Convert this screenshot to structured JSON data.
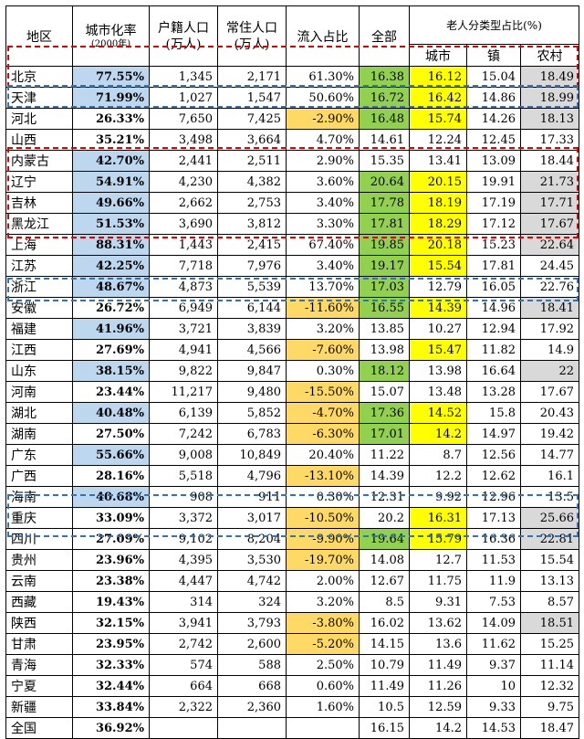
{
  "header": {
    "region": "地区",
    "urbanization": "城市化率",
    "urbanization_note": "(2000年)",
    "hukou_pop": "户籍人口",
    "resident_pop": "常住人口",
    "unit": "(万人)",
    "inflow": "流入占比",
    "total": "全部",
    "elderly_group": "老人分类型占比(%)",
    "city": "城市",
    "town": "镇",
    "rural": "农村"
  },
  "rows": [
    {
      "region": "北京",
      "urb": "77.55%",
      "hukou": "1,345",
      "resident": "2,171",
      "inflow": "61.30%",
      "total": "16.38",
      "city": "16.12",
      "town": "15.04",
      "rural": "18.49",
      "urb_hl": true,
      "inflow_hl": false,
      "total_hl": true,
      "city_hl": true,
      "rural_hl": true
    },
    {
      "region": "天津",
      "urb": "71.99%",
      "hukou": "1,027",
      "resident": "1,547",
      "inflow": "50.60%",
      "total": "16.72",
      "city": "16.42",
      "town": "14.86",
      "rural": "18.99",
      "urb_hl": true,
      "inflow_hl": false,
      "total_hl": true,
      "city_hl": true,
      "rural_hl": true
    },
    {
      "region": "河北",
      "urb": "26.33%",
      "hukou": "7,650",
      "resident": "7,425",
      "inflow": "-2.90%",
      "total": "16.48",
      "city": "15.74",
      "town": "14.26",
      "rural": "18.13",
      "urb_hl": false,
      "inflow_hl": true,
      "total_hl": true,
      "city_hl": true,
      "rural_hl": true
    },
    {
      "region": "山西",
      "urb": "35.21%",
      "hukou": "3,498",
      "resident": "3,664",
      "inflow": "4.70%",
      "total": "14.61",
      "city": "12.24",
      "town": "12.45",
      "rural": "17.33",
      "urb_hl": false,
      "inflow_hl": false,
      "total_hl": false,
      "city_hl": false,
      "rural_hl": false
    },
    {
      "region": "内蒙古",
      "urb": "42.70%",
      "hukou": "2,441",
      "resident": "2,511",
      "inflow": "2.90%",
      "total": "15.35",
      "city": "13.41",
      "town": "13.09",
      "rural": "18.44",
      "urb_hl": true,
      "inflow_hl": false,
      "total_hl": false,
      "city_hl": false,
      "rural_hl": false
    },
    {
      "region": "辽宁",
      "urb": "54.91%",
      "hukou": "4,230",
      "resident": "4,382",
      "inflow": "3.60%",
      "total": "20.64",
      "city": "20.15",
      "town": "19.91",
      "rural": "21.73",
      "urb_hl": true,
      "inflow_hl": false,
      "total_hl": true,
      "city_hl": true,
      "rural_hl": true
    },
    {
      "region": "吉林",
      "urb": "49.66%",
      "hukou": "2,662",
      "resident": "2,753",
      "inflow": "3.40%",
      "total": "17.78",
      "city": "18.19",
      "town": "17.19",
      "rural": "17.71",
      "urb_hl": true,
      "inflow_hl": false,
      "total_hl": true,
      "city_hl": true,
      "rural_hl": true
    },
    {
      "region": "黑龙江",
      "urb": "51.53%",
      "hukou": "3,690",
      "resident": "3,812",
      "inflow": "3.30%",
      "total": "17.81",
      "city": "18.29",
      "town": "17.12",
      "rural": "17.67",
      "urb_hl": true,
      "inflow_hl": false,
      "total_hl": true,
      "city_hl": true,
      "rural_hl": true
    },
    {
      "region": "上海",
      "urb": "88.31%",
      "hukou": "1,443",
      "resident": "2,415",
      "inflow": "67.40%",
      "total": "19.85",
      "city": "20.18",
      "town": "15.23",
      "rural": "22.64",
      "urb_hl": true,
      "inflow_hl": false,
      "total_hl": true,
      "city_hl": true,
      "rural_hl": true
    },
    {
      "region": "江苏",
      "urb": "42.25%",
      "hukou": "7,718",
      "resident": "7,976",
      "inflow": "3.40%",
      "total": "19.17",
      "city": "15.54",
      "town": "17.81",
      "rural": "24.45",
      "urb_hl": true,
      "inflow_hl": false,
      "total_hl": true,
      "city_hl": true,
      "rural_hl": false
    },
    {
      "region": "浙江",
      "urb": "48.67%",
      "hukou": "4,873",
      "resident": "5,539",
      "inflow": "13.70%",
      "total": "17.03",
      "city": "12.79",
      "town": "16.05",
      "rural": "22.76",
      "urb_hl": true,
      "inflow_hl": false,
      "total_hl": true,
      "city_hl": false,
      "rural_hl": false
    },
    {
      "region": "安徽",
      "urb": "26.72%",
      "hukou": "6,949",
      "resident": "6,144",
      "inflow": "-11.60%",
      "total": "16.55",
      "city": "14.39",
      "town": "14.96",
      "rural": "18.41",
      "urb_hl": false,
      "inflow_hl": true,
      "total_hl": true,
      "city_hl": true,
      "rural_hl": true
    },
    {
      "region": "福建",
      "urb": "41.96%",
      "hukou": "3,721",
      "resident": "3,839",
      "inflow": "3.20%",
      "total": "13.85",
      "city": "10.27",
      "town": "12.94",
      "rural": "17.92",
      "urb_hl": true,
      "inflow_hl": false,
      "total_hl": false,
      "city_hl": false,
      "rural_hl": false
    },
    {
      "region": "江西",
      "urb": "27.69%",
      "hukou": "4,941",
      "resident": "4,566",
      "inflow": "-7.60%",
      "total": "13.98",
      "city": "15.47",
      "town": "11.82",
      "rural": "14.9",
      "urb_hl": false,
      "inflow_hl": true,
      "total_hl": false,
      "city_hl": true,
      "rural_hl": false
    },
    {
      "region": "山东",
      "urb": "38.15%",
      "hukou": "9,822",
      "resident": "9,847",
      "inflow": "0.30%",
      "total": "18.12",
      "city": "13.98",
      "town": "16.64",
      "rural": "22",
      "urb_hl": true,
      "inflow_hl": false,
      "total_hl": true,
      "city_hl": false,
      "rural_hl": true
    },
    {
      "region": "河南",
      "urb": "23.44%",
      "hukou": "11,217",
      "resident": "9,480",
      "inflow": "-15.50%",
      "total": "15.07",
      "city": "13.48",
      "town": "13.28",
      "rural": "17.67",
      "urb_hl": false,
      "inflow_hl": true,
      "total_hl": false,
      "city_hl": false,
      "rural_hl": false
    },
    {
      "region": "湖北",
      "urb": "40.48%",
      "hukou": "6,139",
      "resident": "5,852",
      "inflow": "-4.70%",
      "total": "17.36",
      "city": "14.52",
      "town": "15.8",
      "rural": "20.43",
      "urb_hl": true,
      "inflow_hl": true,
      "total_hl": true,
      "city_hl": true,
      "rural_hl": false
    },
    {
      "region": "湖南",
      "urb": "27.50%",
      "hukou": "7,242",
      "resident": "6,783",
      "inflow": "-6.30%",
      "total": "17.01",
      "city": "14.2",
      "town": "14.97",
      "rural": "19.42",
      "urb_hl": false,
      "inflow_hl": true,
      "total_hl": true,
      "city_hl": true,
      "rural_hl": false
    },
    {
      "region": "广东",
      "urb": "55.66%",
      "hukou": "9,008",
      "resident": "10,849",
      "inflow": "20.40%",
      "total": "11.22",
      "city": "8.7",
      "town": "12.56",
      "rural": "14.77",
      "urb_hl": true,
      "inflow_hl": false,
      "total_hl": false,
      "city_hl": false,
      "rural_hl": false
    },
    {
      "region": "广西",
      "urb": "28.16%",
      "hukou": "5,518",
      "resident": "4,796",
      "inflow": "-13.10%",
      "total": "14.39",
      "city": "12.2",
      "town": "12.62",
      "rural": "16.1",
      "urb_hl": false,
      "inflow_hl": true,
      "total_hl": false,
      "city_hl": false,
      "rural_hl": false
    },
    {
      "region": "海南",
      "urb": "40.68%",
      "hukou": "908",
      "resident": "911",
      "inflow": "0.30%",
      "total": "12.31",
      "city": "9.92",
      "town": "12.96",
      "rural": "13.5",
      "urb_hl": true,
      "inflow_hl": false,
      "total_hl": false,
      "city_hl": false,
      "rural_hl": false
    },
    {
      "region": "重庆",
      "urb": "33.09%",
      "hukou": "3,372",
      "resident": "3,017",
      "inflow": "-10.50%",
      "total": "20.2",
      "city": "16.31",
      "town": "17.13",
      "rural": "25.66",
      "urb_hl": false,
      "inflow_hl": true,
      "total_hl": false,
      "city_hl": true,
      "rural_hl": true
    },
    {
      "region": "四川",
      "urb": "27.09%",
      "hukou": "9,102",
      "resident": "8,204",
      "inflow": "-9.90%",
      "total": "19.64",
      "city": "15.79",
      "town": "16.36",
      "rural": "22.81",
      "urb_hl": false,
      "inflow_hl": true,
      "total_hl": true,
      "city_hl": true,
      "rural_hl": true
    },
    {
      "region": "贵州",
      "urb": "23.96%",
      "hukou": "4,395",
      "resident": "3,530",
      "inflow": "-19.70%",
      "total": "14.08",
      "city": "12.7",
      "town": "11.53",
      "rural": "15.54",
      "urb_hl": false,
      "inflow_hl": true,
      "total_hl": false,
      "city_hl": false,
      "rural_hl": false
    },
    {
      "region": "云南",
      "urb": "23.38%",
      "hukou": "4,447",
      "resident": "4,742",
      "inflow": "2.00%",
      "total": "12.67",
      "city": "11.75",
      "town": "11.9",
      "rural": "13.13",
      "urb_hl": false,
      "inflow_hl": false,
      "total_hl": false,
      "city_hl": false,
      "rural_hl": false
    },
    {
      "region": "西藏",
      "urb": "19.43%",
      "hukou": "314",
      "resident": "324",
      "inflow": "3.20%",
      "total": "8.5",
      "city": "9.31",
      "town": "7.53",
      "rural": "8.57",
      "urb_hl": false,
      "inflow_hl": false,
      "total_hl": false,
      "city_hl": false,
      "rural_hl": false
    },
    {
      "region": "陕西",
      "urb": "32.15%",
      "hukou": "3,941",
      "resident": "3,793",
      "inflow": "-3.80%",
      "total": "16.02",
      "city": "13.62",
      "town": "14.09",
      "rural": "18.51",
      "urb_hl": false,
      "inflow_hl": true,
      "total_hl": false,
      "city_hl": false,
      "rural_hl": true
    },
    {
      "region": "甘肃",
      "urb": "23.95%",
      "hukou": "2,742",
      "resident": "2,600",
      "inflow": "-5.20%",
      "total": "14.15",
      "city": "13.6",
      "town": "11.62",
      "rural": "15.25",
      "urb_hl": false,
      "inflow_hl": true,
      "total_hl": false,
      "city_hl": false,
      "rural_hl": false
    },
    {
      "region": "青海",
      "urb": "32.33%",
      "hukou": "574",
      "resident": "588",
      "inflow": "2.50%",
      "total": "10.79",
      "city": "11.49",
      "town": "9.37",
      "rural": "11.14",
      "urb_hl": false,
      "inflow_hl": false,
      "total_hl": false,
      "city_hl": false,
      "rural_hl": false
    },
    {
      "region": "宁夏",
      "urb": "32.44%",
      "hukou": "664",
      "resident": "668",
      "inflow": "0.60%",
      "total": "11.49",
      "city": "11.26",
      "town": "10",
      "rural": "12.32",
      "urb_hl": false,
      "inflow_hl": false,
      "total_hl": false,
      "city_hl": false,
      "rural_hl": false
    },
    {
      "region": "新疆",
      "urb": "33.84%",
      "hukou": "2,322",
      "resident": "2,360",
      "inflow": "1.60%",
      "total": "10.5",
      "city": "12.59",
      "town": "9.33",
      "rural": "9.75",
      "urb_hl": false,
      "inflow_hl": false,
      "total_hl": false,
      "city_hl": false,
      "rural_hl": false
    },
    {
      "region": "全国",
      "urb": "36.92%",
      "hukou": "",
      "resident": "",
      "inflow": "",
      "total": "16.15",
      "city": "14.2",
      "town": "14.53",
      "rural": "18.47",
      "urb_hl": false,
      "inflow_hl": false,
      "total_hl": false,
      "city_hl": false,
      "rural_hl": false
    }
  ],
  "colors": {
    "urb_highlight": "#bdd7ee",
    "inflow_highlight": "#ffd966",
    "total_highlight": "#92d050",
    "city_highlight": "#ffff00",
    "rural_highlight": "#d9d9d9",
    "box_red": "#e00000",
    "box_blue": "#2e75b6"
  }
}
